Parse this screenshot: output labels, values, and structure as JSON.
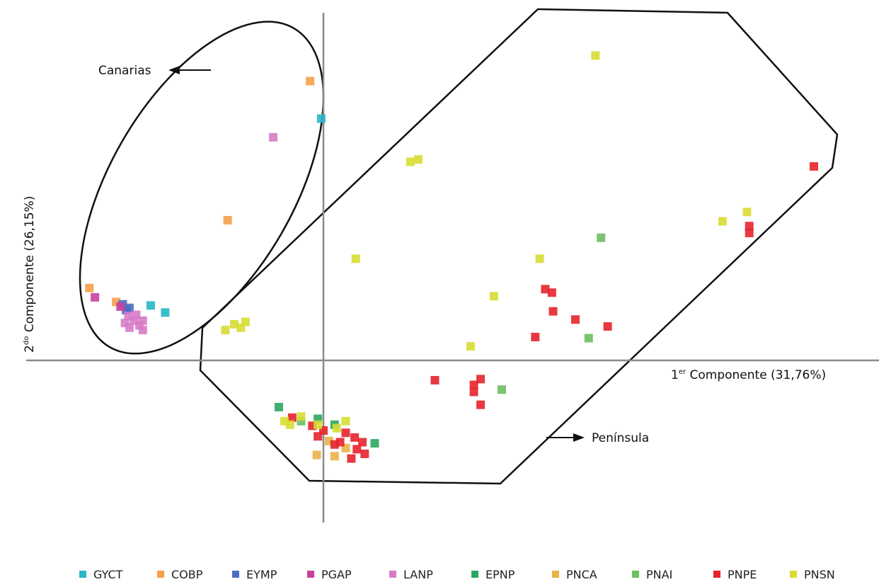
{
  "chart_data": {
    "type": "scatter",
    "title": "",
    "xlabel": {
      "pre": "1",
      "sup": "er",
      "post": " Componente (31,76%)"
    },
    "ylabel": {
      "pre": "2",
      "sup": "do",
      "post": " Componente (26,15%)"
    },
    "xlim": [
      -2.9,
      4.8
    ],
    "ylim": [
      -1.45,
      2.95
    ],
    "grid": false,
    "legend_position": "bottom",
    "annotations": {
      "group_1": "Canarias",
      "group_2": "Península"
    },
    "series": [
      {
        "name": "GYCT",
        "color": "#29b6c6",
        "points": [
          [
            -0.02,
            2.07
          ],
          [
            -1.55,
            0.47
          ],
          [
            -1.42,
            0.41
          ]
        ]
      },
      {
        "name": "COBP",
        "color": "#f5a04a",
        "points": [
          [
            -0.12,
            2.39
          ],
          [
            -0.86,
            1.2
          ],
          [
            -2.1,
            0.62
          ],
          [
            -1.86,
            0.5
          ]
        ]
      },
      {
        "name": "EYMP",
        "color": "#4a6dc4",
        "points": [
          [
            -1.8,
            0.48
          ],
          [
            -1.74,
            0.45
          ],
          [
            -1.77,
            0.43
          ]
        ]
      },
      {
        "name": "PGAP",
        "color": "#c8419c",
        "points": [
          [
            -2.05,
            0.54
          ],
          [
            -1.82,
            0.46
          ]
        ]
      },
      {
        "name": "LANP",
        "color": "#d77bc8",
        "points": [
          [
            -0.45,
            1.91
          ],
          [
            -1.75,
            0.38
          ],
          [
            -1.7,
            0.34
          ],
          [
            -1.65,
            0.3
          ],
          [
            -1.62,
            0.26
          ],
          [
            -1.78,
            0.32
          ],
          [
            -1.68,
            0.39
          ],
          [
            -1.62,
            0.34
          ],
          [
            -1.74,
            0.28
          ]
        ]
      },
      {
        "name": "EPNP",
        "color": "#2aa860",
        "points": [
          [
            -0.4,
            -0.4
          ],
          [
            -0.05,
            -0.5
          ],
          [
            0.1,
            -0.55
          ],
          [
            0.46,
            -0.71
          ]
        ]
      },
      {
        "name": "PNCA",
        "color": "#e8b34a",
        "points": [
          [
            -0.06,
            -0.81
          ],
          [
            0.1,
            -0.82
          ],
          [
            0.05,
            -0.69
          ],
          [
            0.2,
            -0.75
          ]
        ]
      },
      {
        "name": "PNAI",
        "color": "#6dbf62",
        "points": [
          [
            2.49,
            1.05
          ],
          [
            2.38,
            0.19
          ],
          [
            1.6,
            -0.25
          ],
          [
            -0.2,
            -0.52
          ]
        ]
      },
      {
        "name": "PNPE",
        "color": "#e6242c",
        "points": [
          [
            4.4,
            1.66
          ],
          [
            3.82,
            1.15
          ],
          [
            3.82,
            1.09
          ],
          [
            1.99,
            0.61
          ],
          [
            2.05,
            0.58
          ],
          [
            2.06,
            0.42
          ],
          [
            2.26,
            0.35
          ],
          [
            2.55,
            0.29
          ],
          [
            1.9,
            0.2
          ],
          [
            1.0,
            -0.17
          ],
          [
            1.41,
            -0.16
          ],
          [
            1.35,
            -0.21
          ],
          [
            1.35,
            -0.27
          ],
          [
            1.41,
            -0.38
          ],
          [
            -0.28,
            -0.49
          ],
          [
            -0.1,
            -0.56
          ],
          [
            0.0,
            -0.6
          ],
          [
            0.2,
            -0.62
          ],
          [
            0.28,
            -0.66
          ],
          [
            0.1,
            -0.72
          ],
          [
            0.3,
            -0.76
          ],
          [
            0.37,
            -0.8
          ],
          [
            0.25,
            -0.84
          ],
          [
            -0.05,
            -0.65
          ],
          [
            0.15,
            -0.7
          ],
          [
            0.35,
            -0.7
          ]
        ]
      },
      {
        "name": "PNSN",
        "color": "#d8dd34",
        "points": [
          [
            2.44,
            2.61
          ],
          [
            0.85,
            1.72
          ],
          [
            0.78,
            1.7
          ],
          [
            3.8,
            1.27
          ],
          [
            3.58,
            1.19
          ],
          [
            0.29,
            0.87
          ],
          [
            1.94,
            0.87
          ],
          [
            1.53,
            0.55
          ],
          [
            1.32,
            0.12
          ],
          [
            -0.8,
            0.31
          ],
          [
            -0.74,
            0.28
          ],
          [
            -0.88,
            0.26
          ],
          [
            -0.7,
            0.33
          ],
          [
            -0.35,
            -0.52
          ],
          [
            -0.3,
            -0.55
          ],
          [
            -0.2,
            -0.48
          ],
          [
            0.2,
            -0.52
          ],
          [
            -0.05,
            -0.55
          ],
          [
            0.12,
            -0.58
          ]
        ]
      }
    ]
  }
}
